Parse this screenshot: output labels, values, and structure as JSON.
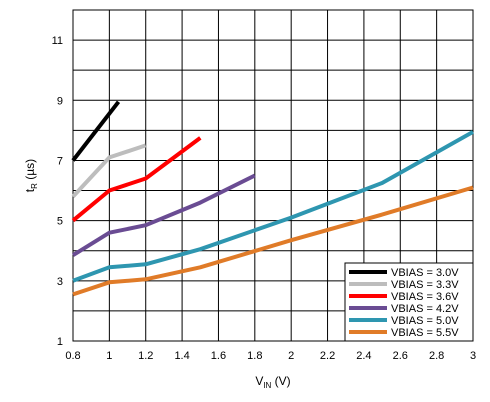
{
  "chart_data": {
    "type": "line",
    "title": "",
    "xlabel": {
      "main": "V",
      "sub": "IN",
      "unit": " (V)"
    },
    "ylabel": {
      "main": "t",
      "sub": "R",
      "unit": " (µs)"
    },
    "xlim": [
      0.8,
      3.0
    ],
    "ylim": [
      1,
      12
    ],
    "xticks": [
      0.8,
      1.0,
      1.2,
      1.4,
      1.6,
      1.8,
      2.0,
      2.2,
      2.4,
      2.6,
      2.8,
      3.0
    ],
    "xtick_labels": [
      "0.8",
      "1",
      "1.2",
      "1.4",
      "1.6",
      "1.8",
      "2",
      "2.2",
      "2.4",
      "2.6",
      "2.8",
      "3"
    ],
    "yticks": [
      1,
      3,
      5,
      7,
      9,
      11
    ],
    "ytick_labels": [
      "1",
      "3",
      "5",
      "7",
      "9",
      "11"
    ],
    "grid": true,
    "legend_position": "bottom-right",
    "series": [
      {
        "name": "VBIAS = 3.0V",
        "color": "#000000",
        "x": [
          0.8,
          1.05
        ],
        "y": [
          7.0,
          8.95
        ]
      },
      {
        "name": "VBIAS = 3.3V",
        "color": "#bdbdbd",
        "x": [
          0.8,
          1.0,
          1.2
        ],
        "y": [
          5.8,
          7.1,
          7.5
        ]
      },
      {
        "name": "VBIAS = 3.6V",
        "color": "#ff0000",
        "x": [
          0.8,
          1.0,
          1.2,
          1.5
        ],
        "y": [
          5.0,
          6.0,
          6.4,
          7.75
        ]
      },
      {
        "name": "VBIAS = 4.2V",
        "color": "#6a4c93",
        "x": [
          0.8,
          1.0,
          1.2,
          1.5,
          1.8
        ],
        "y": [
          3.85,
          4.6,
          4.85,
          5.6,
          6.5
        ]
      },
      {
        "name": "VBIAS = 5.0V",
        "color": "#2e96b0",
        "x": [
          0.8,
          1.0,
          1.2,
          1.5,
          2.0,
          2.5,
          3.0
        ],
        "y": [
          3.0,
          3.45,
          3.55,
          4.05,
          5.1,
          6.25,
          7.95
        ]
      },
      {
        "name": "VBIAS = 5.5V",
        "color": "#e07b28",
        "x": [
          0.8,
          1.0,
          1.2,
          1.5,
          2.0,
          2.5,
          3.0
        ],
        "y": [
          2.55,
          2.95,
          3.05,
          3.45,
          4.35,
          5.2,
          6.1
        ]
      }
    ]
  }
}
